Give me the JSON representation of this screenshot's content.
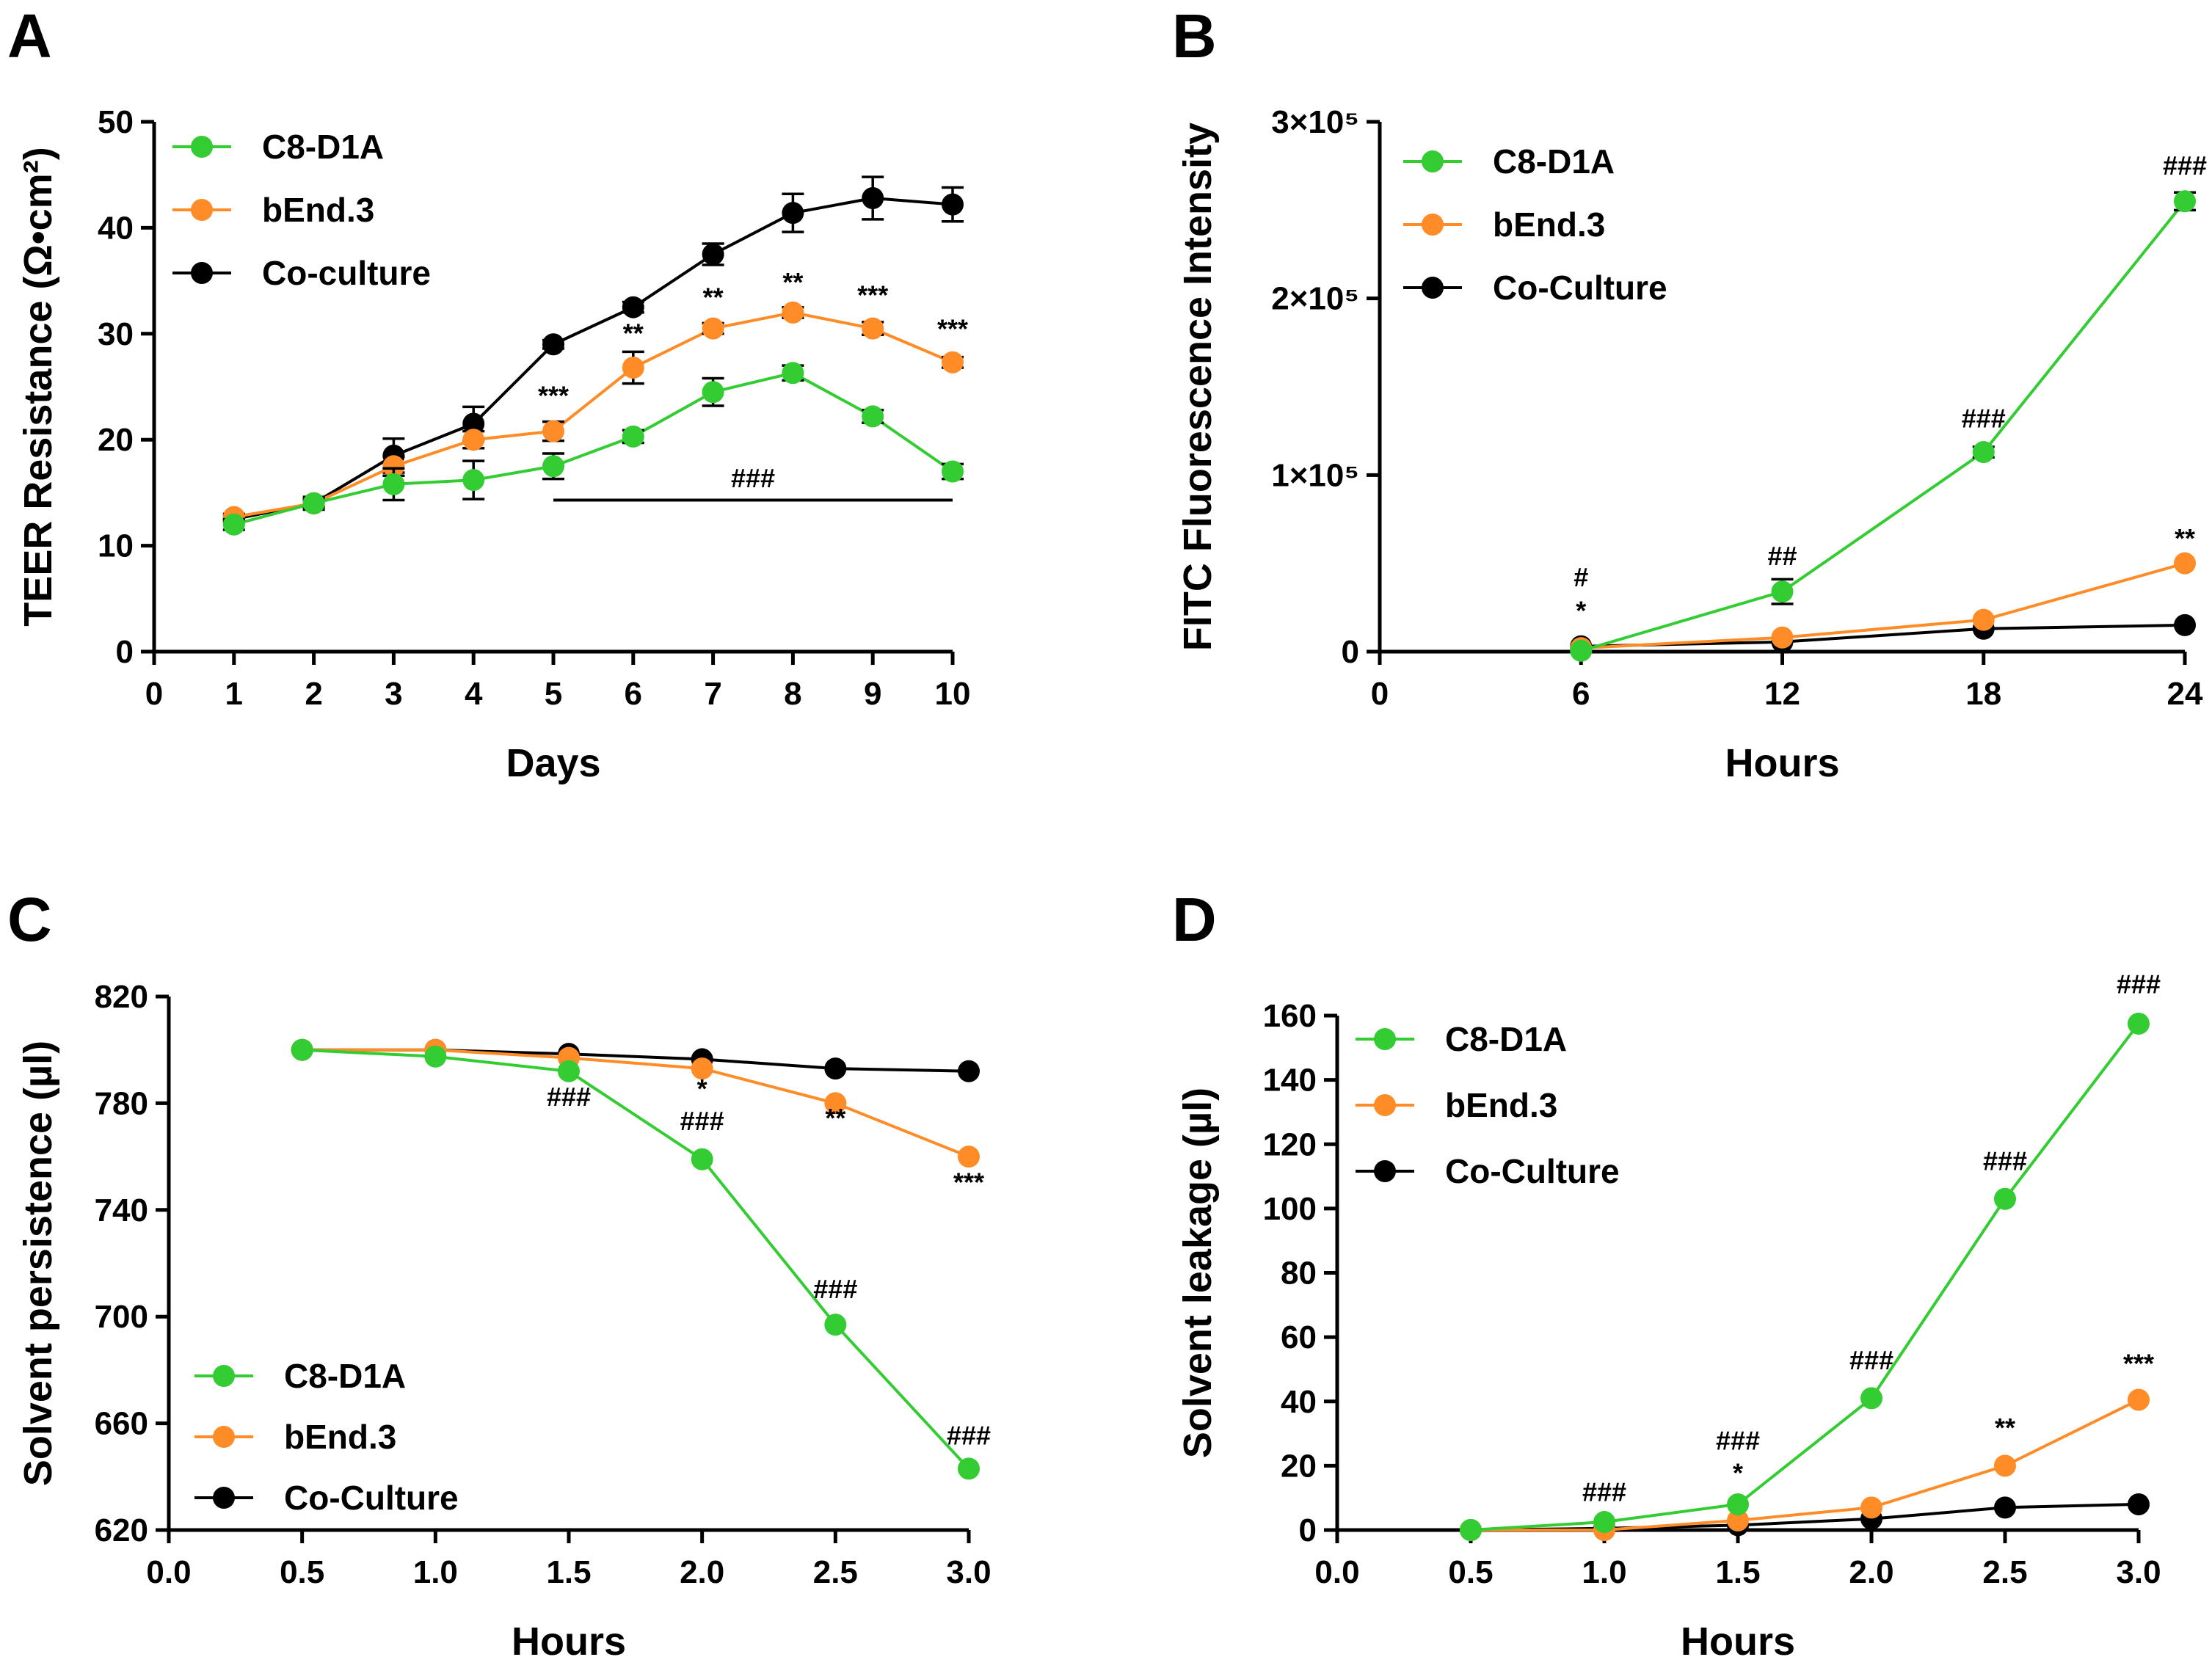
{
  "colors": {
    "c8d1a": "#33cc33",
    "bend3": "#ff8c26",
    "coculture": "#000000"
  },
  "chart_data": [
    {
      "panel": "A",
      "type": "line",
      "xlabel": "Days",
      "ylabel": "TEER Resistance (Ω•cm²)",
      "xlim": [
        0,
        10
      ],
      "ylim": [
        0,
        50
      ],
      "xticks": [
        0,
        1,
        2,
        3,
        4,
        5,
        6,
        7,
        8,
        9,
        10
      ],
      "xtick_labels": [
        "0",
        "1",
        "2",
        "3",
        "4",
        "5",
        "6",
        "7",
        "8",
        "9",
        "10"
      ],
      "yticks": [
        0,
        10,
        20,
        30,
        40,
        50
      ],
      "ytick_labels": [
        "0",
        "10",
        "20",
        "30",
        "40",
        "50"
      ],
      "legend_position": "top-left",
      "series": [
        {
          "name": "C8-D1A",
          "color": "#33cc33",
          "x": [
            1,
            2,
            3,
            4,
            5,
            6,
            7,
            8,
            9,
            10
          ],
          "y": [
            12.0,
            14.0,
            15.8,
            16.2,
            17.5,
            20.3,
            24.5,
            26.3,
            22.2,
            17.0
          ],
          "err": [
            0.5,
            0.6,
            1.5,
            1.8,
            1.2,
            0.6,
            1.3,
            0.7,
            0.6,
            0.7
          ]
        },
        {
          "name": "bEnd.3",
          "color": "#ff8c26",
          "x": [
            1,
            2,
            3,
            4,
            5,
            6,
            7,
            8,
            9,
            10
          ],
          "y": [
            12.7,
            14.0,
            17.5,
            20.0,
            20.8,
            26.8,
            30.5,
            32.0,
            30.5,
            27.3
          ],
          "err": [
            0.3,
            0.4,
            0.9,
            0.8,
            0.9,
            1.5,
            0.5,
            0.5,
            0.6,
            0.5
          ]
        },
        {
          "name": "Co-culture",
          "color": "#000000",
          "x": [
            1,
            2,
            3,
            4,
            5,
            6,
            7,
            8,
            9,
            10
          ],
          "y": [
            12.5,
            14.0,
            18.5,
            21.5,
            29.0,
            32.5,
            37.5,
            41.4,
            42.8,
            42.2
          ],
          "err": [
            0.3,
            0.3,
            1.6,
            1.6,
            0.4,
            0.5,
            1.0,
            1.8,
            2.0,
            1.6
          ]
        }
      ],
      "annotations": [
        {
          "text": "***",
          "x": 5,
          "y": 23.3
        },
        {
          "text": "**",
          "x": 6,
          "y": 29.2
        },
        {
          "text": "**",
          "x": 7,
          "y": 32.6
        },
        {
          "text": "**",
          "x": 8,
          "y": 34.0
        },
        {
          "text": "***",
          "x": 9,
          "y": 32.8
        },
        {
          "text": "***",
          "x": 10,
          "y": 29.6
        },
        {
          "text": "###",
          "x": 7.5,
          "y": 15.5
        }
      ],
      "hline": {
        "x1": 5,
        "x2": 10,
        "y": 14.3
      }
    },
    {
      "panel": "B",
      "type": "line",
      "xlabel": "Hours",
      "ylabel": "FITC Fluorescence Intensity",
      "xlim": [
        0,
        24
      ],
      "ylim": [
        0,
        300000
      ],
      "xticks": [
        0,
        6,
        12,
        18,
        24
      ],
      "xtick_labels": [
        "0",
        "6",
        "12",
        "18",
        "24"
      ],
      "yticks": [
        0,
        100000,
        200000,
        300000
      ],
      "ytick_labels": [
        "0",
        "1×10⁵",
        "2×10⁵",
        "3×10⁵"
      ],
      "legend_position": "top-left",
      "series": [
        {
          "name": "C8-D1A",
          "color": "#33cc33",
          "x": [
            6,
            12,
            18,
            24
          ],
          "y": [
            500,
            34000,
            113000,
            255000
          ],
          "err": [
            0,
            7000,
            3000,
            5000
          ]
        },
        {
          "name": "bEnd.3",
          "color": "#ff8c26",
          "x": [
            6,
            12,
            18,
            24
          ],
          "y": [
            2000,
            8000,
            18000,
            50000
          ],
          "err": [
            0,
            0,
            0,
            0
          ]
        },
        {
          "name": "Co-Culture",
          "color": "#000000",
          "x": [
            6,
            12,
            18,
            24
          ],
          "y": [
            3000,
            5500,
            13000,
            15000
          ],
          "err": [
            0,
            0,
            0,
            0
          ]
        }
      ],
      "annotations": [
        {
          "text": "#",
          "x": 6,
          "y": 37000
        },
        {
          "text": "*",
          "x": 6,
          "y": 18000
        },
        {
          "text": "##",
          "x": 12,
          "y": 49000
        },
        {
          "text": "###",
          "x": 18,
          "y": 127000
        },
        {
          "text": "###",
          "x": 24,
          "y": 270000
        },
        {
          "text": "**",
          "x": 24,
          "y": 59000
        }
      ]
    },
    {
      "panel": "C",
      "type": "line",
      "xlabel": "Hours",
      "ylabel": "Solvent persistence (µl)",
      "xlim": [
        0,
        3
      ],
      "ylim": [
        620,
        820
      ],
      "xticks": [
        0,
        0.5,
        1,
        1.5,
        2,
        2.5,
        3
      ],
      "xtick_labels": [
        "0.0",
        "0.5",
        "1.0",
        "1.5",
        "2.0",
        "2.5",
        "3.0"
      ],
      "yticks": [
        620,
        660,
        700,
        740,
        780,
        820
      ],
      "ytick_labels": [
        "620",
        "660",
        "700",
        "740",
        "780",
        "820"
      ],
      "legend_position": "bottom-left",
      "series": [
        {
          "name": "C8-D1A",
          "color": "#33cc33",
          "x": [
            0.5,
            1.0,
            1.5,
            2.0,
            2.5,
            3.0
          ],
          "y": [
            800,
            797.5,
            792,
            759,
            697,
            643
          ]
        },
        {
          "name": "bEnd.3",
          "color": "#ff8c26",
          "x": [
            0.5,
            1.0,
            1.5,
            2.0,
            2.5,
            3.0
          ],
          "y": [
            800,
            800,
            797,
            793,
            780,
            760
          ]
        },
        {
          "name": "Co-Culture",
          "color": "#000000",
          "x": [
            0.5,
            1.0,
            1.5,
            2.0,
            2.5,
            3.0
          ],
          "y": [
            800,
            800,
            798.5,
            796.5,
            793,
            792
          ]
        }
      ],
      "annotations": [
        {
          "text": "###",
          "x": 1.5,
          "y": 779
        },
        {
          "text": "*",
          "x": 2.0,
          "y": 782
        },
        {
          "text": "###",
          "x": 2.0,
          "y": 770
        },
        {
          "text": "**",
          "x": 2.5,
          "y": 771
        },
        {
          "text": "***",
          "x": 3.0,
          "y": 747
        },
        {
          "text": "###",
          "x": 2.5,
          "y": 707
        },
        {
          "text": "###",
          "x": 3.0,
          "y": 652
        }
      ]
    },
    {
      "panel": "D",
      "type": "line",
      "xlabel": "Hours",
      "ylabel": "Solvent leakage (µl)",
      "xlim": [
        0,
        3
      ],
      "ylim": [
        0,
        160
      ],
      "xticks": [
        0,
        0.5,
        1,
        1.5,
        2,
        2.5,
        3
      ],
      "xtick_labels": [
        "0.0",
        "0.5",
        "1.0",
        "1.5",
        "2.0",
        "2.5",
        "3.0"
      ],
      "yticks": [
        0,
        20,
        40,
        60,
        80,
        100,
        120,
        140,
        160
      ],
      "ytick_labels": [
        "0",
        "20",
        "40",
        "60",
        "80",
        "100",
        "120",
        "140",
        "160"
      ],
      "legend_position": "top-left",
      "series": [
        {
          "name": "C8-D1A",
          "color": "#33cc33",
          "x": [
            0.5,
            1.0,
            1.5,
            2.0,
            2.5,
            3.0
          ],
          "y": [
            0,
            2.5,
            8,
            41,
            103,
            157.5
          ]
        },
        {
          "name": "bEnd.3",
          "color": "#ff8c26",
          "x": [
            0.5,
            1.0,
            1.5,
            2.0,
            2.5,
            3.0
          ],
          "y": [
            0,
            0,
            3,
            7,
            20,
            40.5
          ]
        },
        {
          "name": "Co-Culture",
          "color": "#000000",
          "x": [
            0.5,
            1.0,
            1.5,
            2.0,
            2.5,
            3.0
          ],
          "y": [
            0,
            0.5,
            1.5,
            3.5,
            7,
            8
          ]
        }
      ],
      "annotations": [
        {
          "text": "###",
          "x": 1.0,
          "y": 9
        },
        {
          "text": "###",
          "x": 1.5,
          "y": 25
        },
        {
          "text": "*",
          "x": 1.5,
          "y": 15
        },
        {
          "text": "###",
          "x": 2.0,
          "y": 50
        },
        {
          "text": "###",
          "x": 2.5,
          "y": 112
        },
        {
          "text": "**",
          "x": 2.5,
          "y": 29
        },
        {
          "text": "###",
          "x": 3.0,
          "y": 167
        },
        {
          "text": "***",
          "x": 3.0,
          "y": 49
        }
      ]
    }
  ]
}
